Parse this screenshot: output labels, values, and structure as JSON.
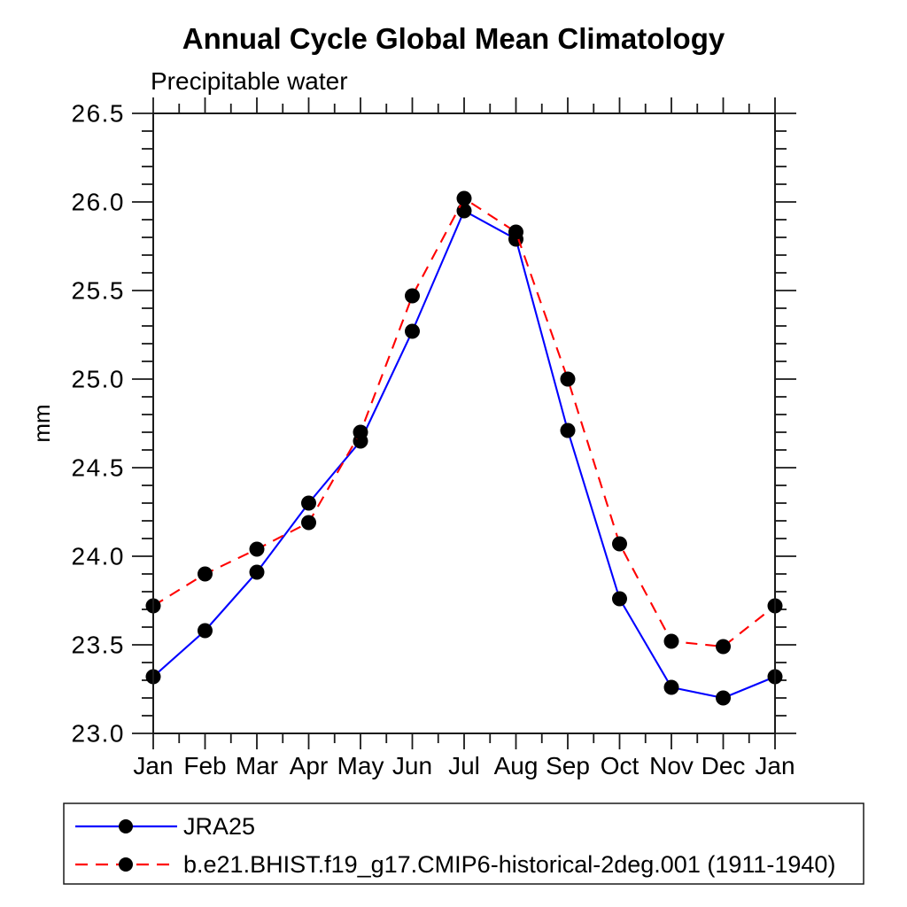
{
  "chart_data": {
    "type": "line",
    "title": "Annual Cycle Global Mean Climatology",
    "subtitle": "Precipitable water",
    "xlabel": "",
    "ylabel": "mm",
    "categories": [
      "Jan",
      "Feb",
      "Mar",
      "Apr",
      "May",
      "Jun",
      "Jul",
      "Aug",
      "Sep",
      "Oct",
      "Nov",
      "Dec",
      "Jan"
    ],
    "ylim": [
      23.0,
      26.5
    ],
    "y_major_step": 0.5,
    "y_minor_step": 0.1,
    "y_tick_labels": [
      "23.0",
      "23.5",
      "24.0",
      "24.5",
      "25.0",
      "25.5",
      "26.0",
      "26.5"
    ],
    "x_minor_ticks_between_months": 1,
    "grid": false,
    "legend_position": "bottom-left-box",
    "marker_color": "#000000",
    "series": [
      {
        "name": "JRA25",
        "color": "#0000ff",
        "line_style": "solid",
        "marker": "circle",
        "values": [
          23.32,
          23.58,
          23.91,
          24.3,
          24.65,
          25.27,
          25.95,
          25.79,
          24.71,
          23.76,
          23.26,
          23.2,
          23.32
        ]
      },
      {
        "name": "b.e21.BHIST.f19_g17.CMIP6-historical-2deg.001 (1911-1940)",
        "color": "#ff0000",
        "line_style": "dashed",
        "marker": "circle",
        "values": [
          23.72,
          23.9,
          24.04,
          24.19,
          24.7,
          25.47,
          26.02,
          25.83,
          25.0,
          24.07,
          23.52,
          23.49,
          23.72
        ]
      }
    ]
  }
}
